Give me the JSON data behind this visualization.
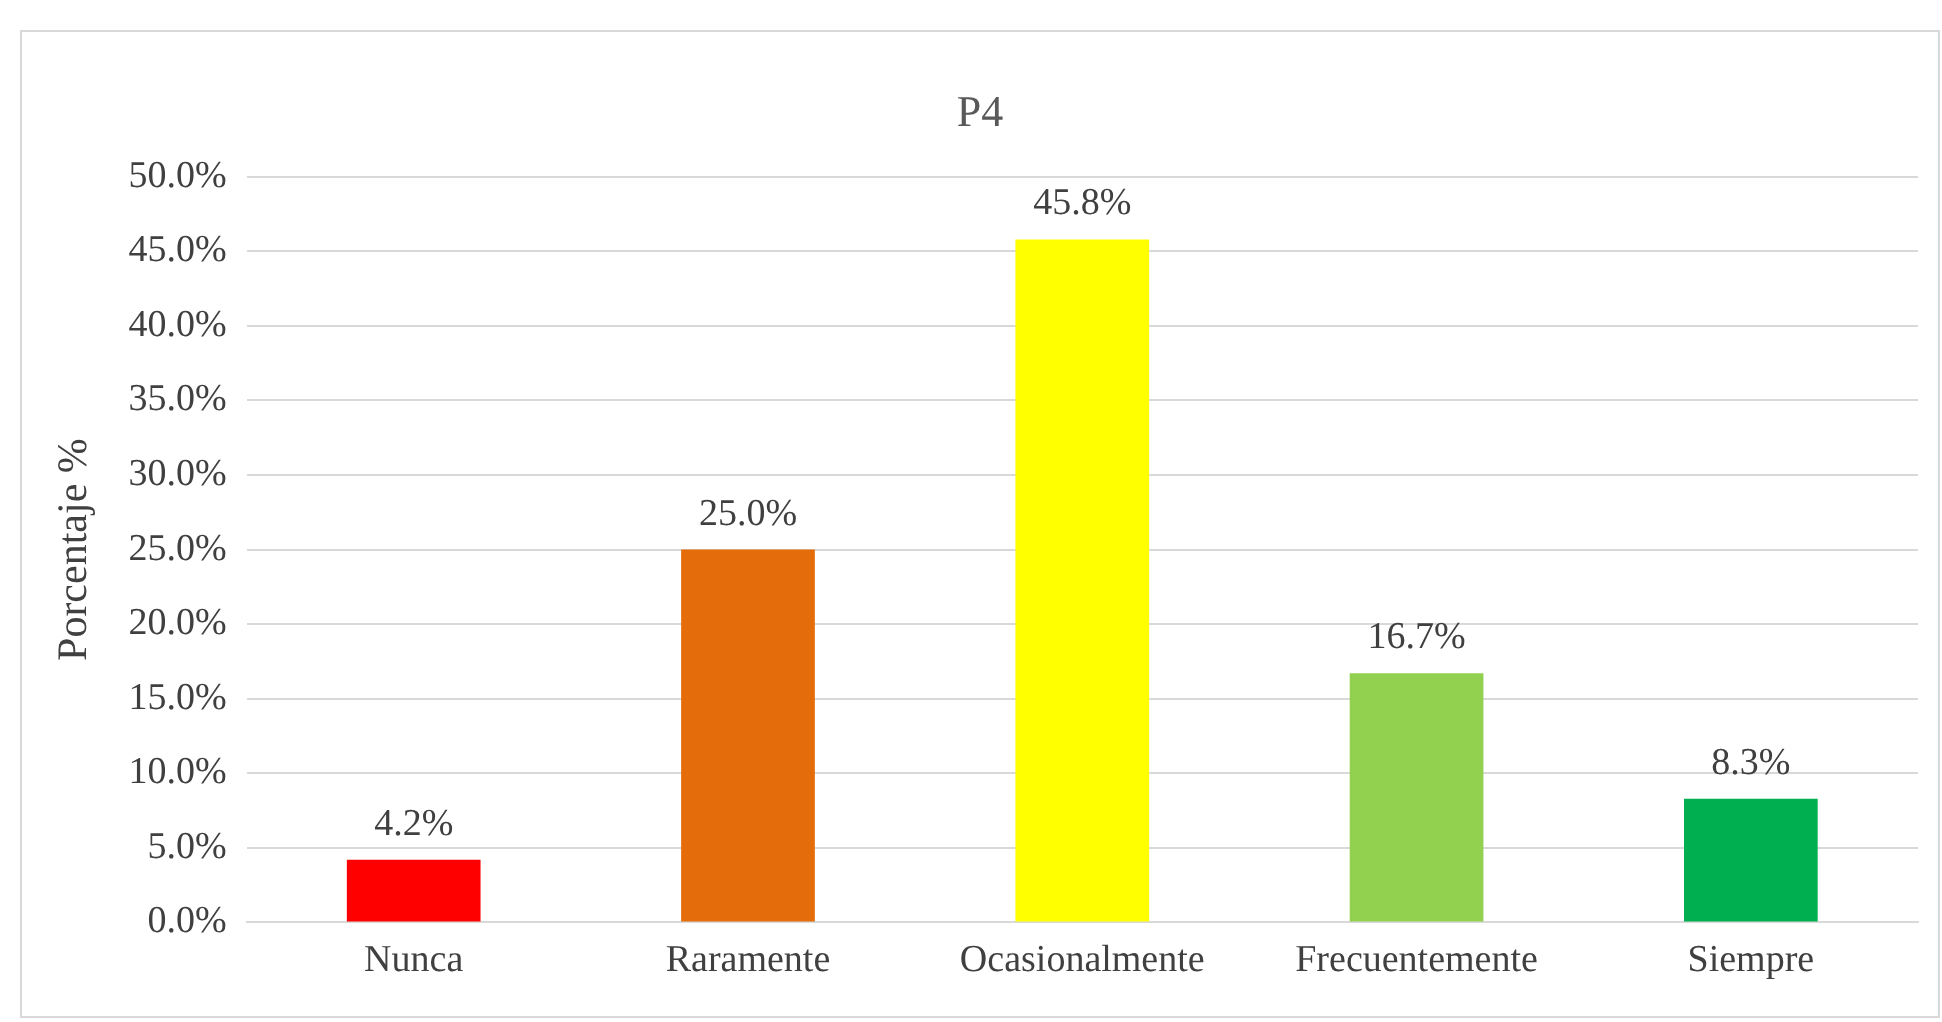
{
  "chart_data": {
    "type": "bar",
    "title": "P4",
    "ylabel": "Porcentaje %",
    "categories": [
      "Nunca",
      "Raramente",
      "Ocasionalmente",
      "Frecuentemente",
      "Siempre"
    ],
    "values": [
      4.2,
      25.0,
      45.8,
      16.7,
      8.3
    ],
    "colors": [
      "#ff0000",
      "#e46c0a",
      "#ffff00",
      "#92d050",
      "#00b050"
    ],
    "value_labels": [
      "4.2%",
      "25.0%",
      "45.8%",
      "16.7%",
      "8.3%"
    ],
    "ylim": [
      0,
      50
    ],
    "yticks": [
      {
        "value": 0,
        "label": "0.0%"
      },
      {
        "value": 5,
        "label": "5.0%"
      },
      {
        "value": 10,
        "label": "10.0%"
      },
      {
        "value": 15,
        "label": "15.0%"
      },
      {
        "value": 20,
        "label": "20.0%"
      },
      {
        "value": 25,
        "label": "25.0%"
      },
      {
        "value": 30,
        "label": "30.0%"
      },
      {
        "value": 35,
        "label": "35.0%"
      },
      {
        "value": 40,
        "label": "40.0%"
      },
      {
        "value": 45,
        "label": "45.0%"
      },
      {
        "value": 50,
        "label": "50.0%"
      }
    ],
    "grid": "y",
    "legend": false
  }
}
